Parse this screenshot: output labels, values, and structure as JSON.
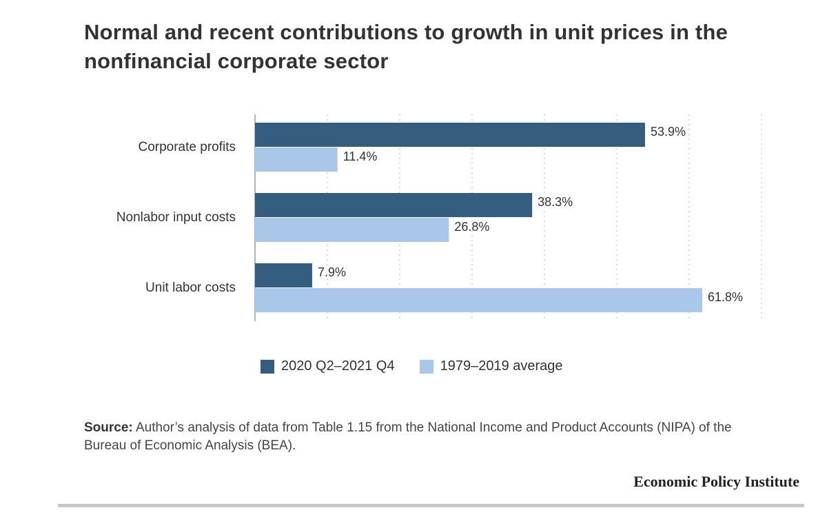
{
  "title": "Normal and recent contributions to growth in unit prices in the nonfinancial corporate sector",
  "chart_data": {
    "type": "bar",
    "orientation": "horizontal",
    "categories": [
      "Corporate profits",
      "Nonlabor input costs",
      "Unit labor costs"
    ],
    "series": [
      {
        "name": "2020 Q2–2021 Q4",
        "values": [
          53.9,
          38.3,
          7.9
        ],
        "labels": [
          "53.9%",
          "38.3%",
          "7.9%"
        ],
        "color": "#345e80"
      },
      {
        "name": "1979–2019 average",
        "values": [
          11.4,
          26.8,
          61.8
        ],
        "labels": [
          "11.4%",
          "26.8%",
          "61.8%"
        ],
        "color": "#a9c7e8"
      }
    ],
    "xlim": [
      0,
      70
    ],
    "grid": true,
    "legend_position": "bottom"
  },
  "source": {
    "label": "Source:",
    "text": "Author’s analysis of data from Table 1.15 from the National Income and Product Accounts (NIPA) of the Bureau of Economic Analysis (BEA)."
  },
  "brand": "Economic Policy Institute"
}
